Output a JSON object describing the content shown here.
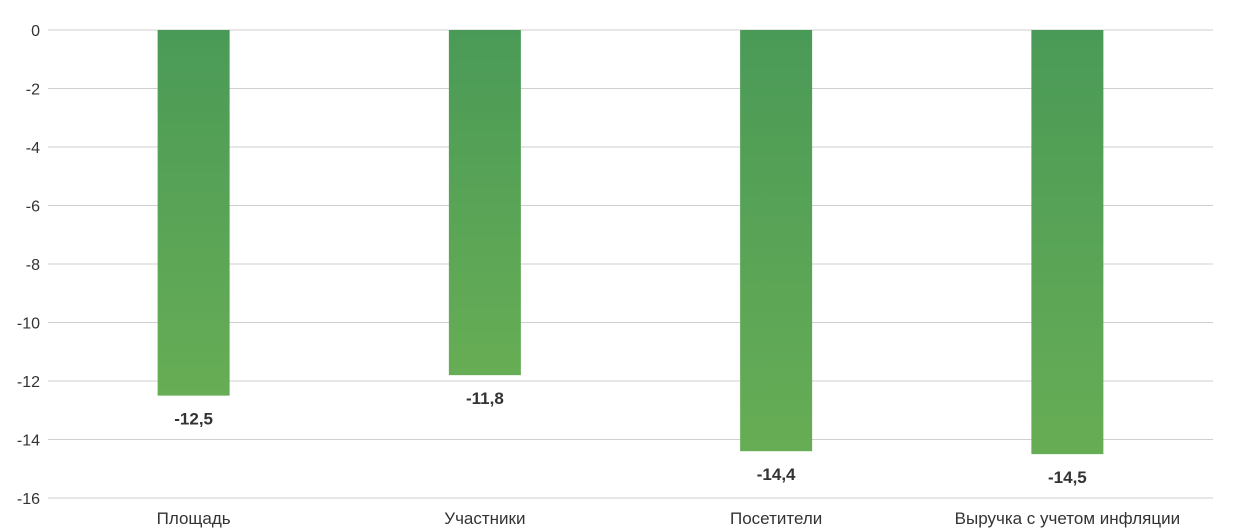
{
  "chart_data": {
    "type": "bar",
    "categories": [
      "Площадь",
      "Участники",
      "Посетители",
      "Выручка с учетом инфляции"
    ],
    "values": [
      -12.5,
      -11.8,
      -14.4,
      -14.5
    ],
    "data_labels": [
      "-12,5",
      "-11,8",
      "-14,4",
      "-14,5"
    ],
    "ylim": [
      -16,
      0
    ],
    "yticks": [
      0,
      -2,
      -4,
      -6,
      -8,
      -10,
      -12,
      -14,
      -16
    ],
    "ytick_labels": [
      "0",
      "-2",
      "-4",
      "-6",
      "-8",
      "-10",
      "-12",
      "-14",
      "-16"
    ],
    "grid": true,
    "bar_color_top": "#4a9a57",
    "bar_color_bottom": "#67ad55",
    "title": "",
    "xlabel": "",
    "ylabel": ""
  }
}
